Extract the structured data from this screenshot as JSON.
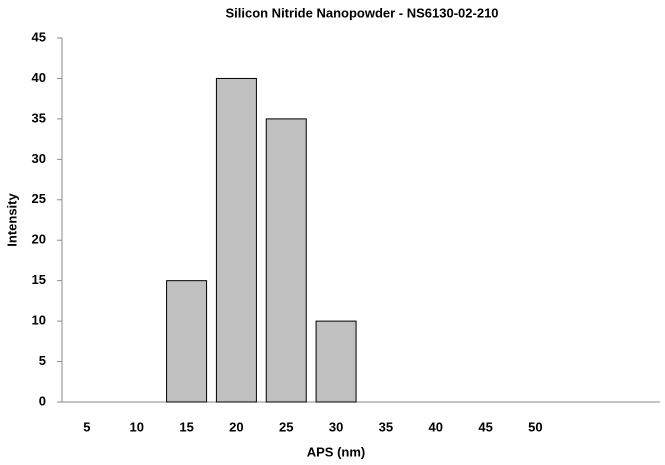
{
  "chart_data": {
    "type": "bar",
    "title": "Silicon Nitride Nanopowder - NS6130-02-210",
    "x_label": "APS (nm)",
    "y_label": "Intensity",
    "categories": [
      "5",
      "10",
      "15",
      "20",
      "25",
      "30",
      "35",
      "40",
      "45",
      "50",
      null,
      null
    ],
    "values": [
      0,
      0,
      15,
      40,
      35,
      10,
      0,
      0,
      0,
      0,
      0,
      0
    ],
    "color": "#c0c0c0",
    "ylim": [
      0,
      45
    ],
    "yticks": [
      0,
      5,
      10,
      15,
      20,
      25,
      30,
      35,
      40,
      45
    ],
    "grid": false
  }
}
